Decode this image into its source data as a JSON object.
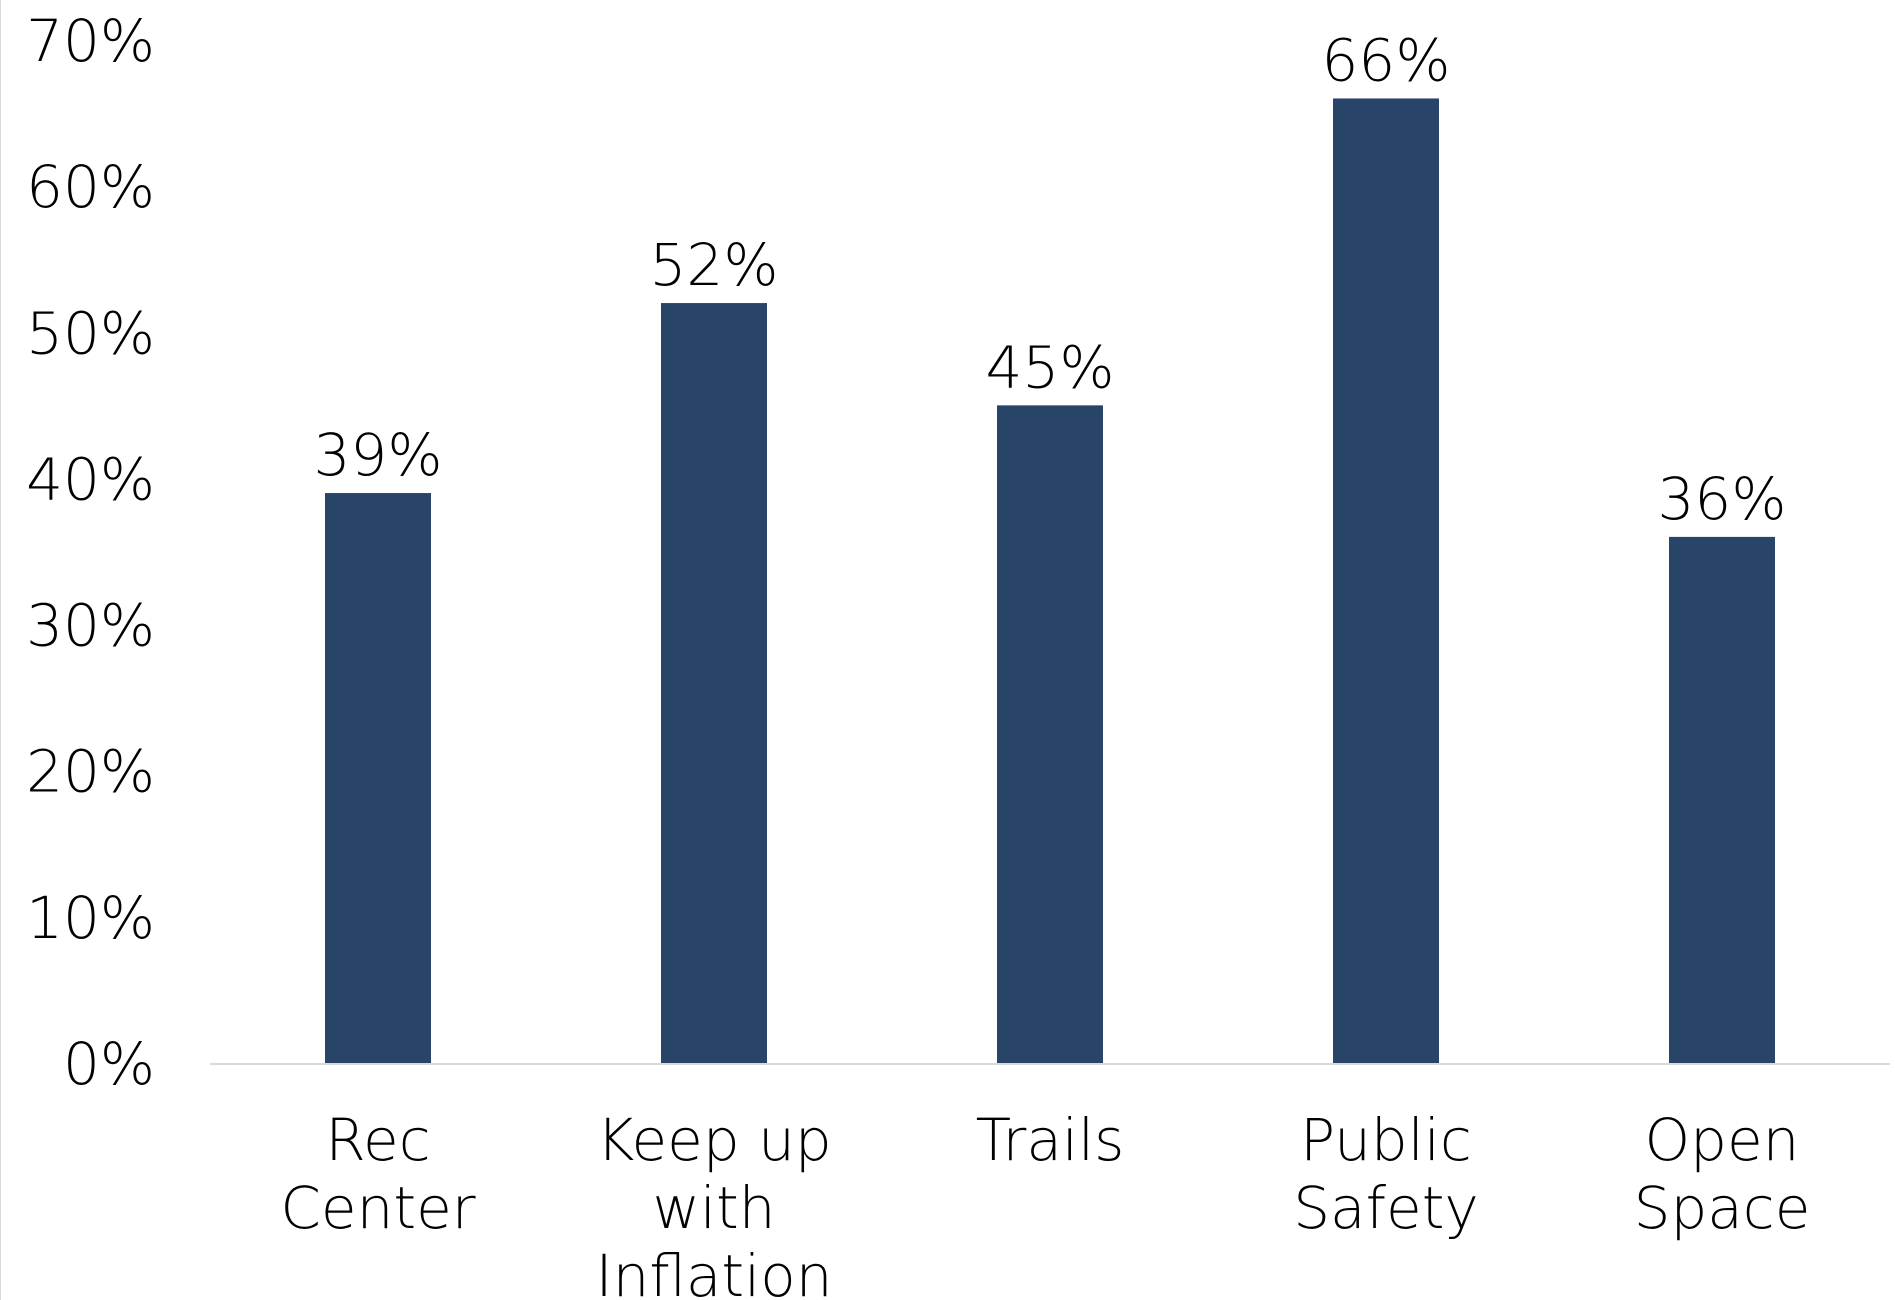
{
  "chart_data": {
    "type": "bar",
    "title": "",
    "xlabel": "",
    "ylabel": "",
    "categories": [
      [
        "Rec",
        "Center"
      ],
      [
        "Keep up",
        "with",
        "Inflation"
      ],
      [
        "Trails"
      ],
      [
        "Public",
        "Safety"
      ],
      [
        "Open",
        "Space"
      ]
    ],
    "values": [
      39,
      52,
      45,
      66,
      36
    ],
    "value_labels": [
      "39%",
      "52%",
      "45%",
      "66%",
      "36%"
    ],
    "ylim": [
      0,
      70
    ],
    "y_ticks": [
      0,
      10,
      20,
      30,
      40,
      50,
      60,
      70
    ],
    "y_tick_labels": [
      "0%",
      "10%",
      "20%",
      "30%",
      "40%",
      "50%",
      "60%",
      "70%"
    ],
    "grid": false,
    "legend": "none",
    "bar_color": "#284468",
    "axis_color": "#d9d9d9"
  }
}
